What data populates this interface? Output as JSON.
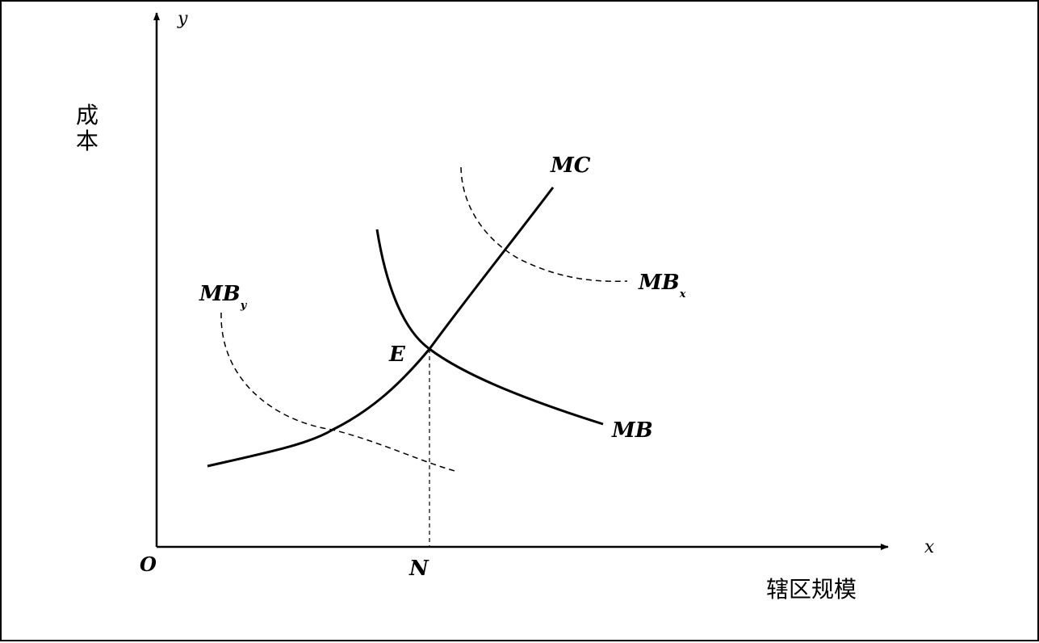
{
  "diagram": {
    "y_axis_var": "y",
    "x_axis_var": "x",
    "origin_label": "O",
    "y_axis_title": "成本",
    "x_axis_title": "辖区规模",
    "curves": {
      "mc": "MC",
      "mb": "MB",
      "mbx_base": "MB",
      "mbx_sub": "x",
      "mby_base": "MB",
      "mby_sub": "y"
    },
    "equilibrium_point": "E",
    "equilibrium_x": "N"
  }
}
